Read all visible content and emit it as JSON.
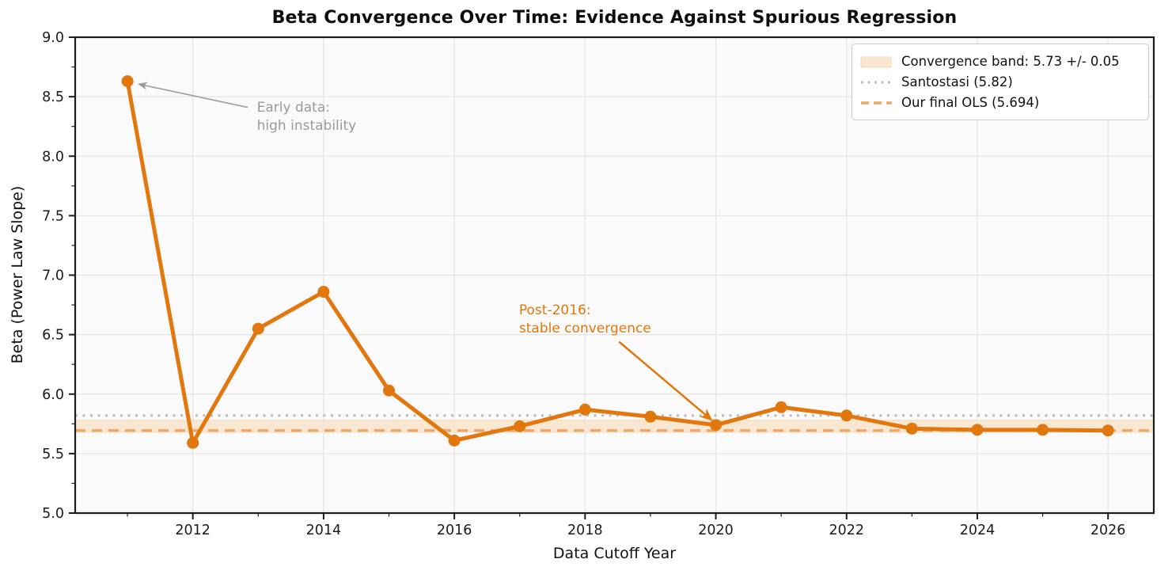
{
  "title": "Beta Convergence Over Time: Evidence Against Spurious Regression",
  "axes": {
    "xlabel": "Data Cutoff Year",
    "ylabel": "Beta (Power Law Slope)"
  },
  "colors": {
    "main_orange": "#e1770d",
    "light_orange_dashed": "#f2a463",
    "band_fill": "#f9e7d2",
    "band_edge": "#f3d9ba",
    "gray_dotted": "#bcbcbc",
    "annotation_gray": "#9a9a9a",
    "axes_background": "#fafafa",
    "grid": "#e4e4e4",
    "spine": "#1b1b1b"
  },
  "chart_data": {
    "type": "line",
    "title": "Beta Convergence Over Time: Evidence Against Spurious Regression",
    "xlabel": "Data Cutoff Year",
    "ylabel": "Beta (Power Law Slope)",
    "xlim": [
      2010.2,
      2026.7
    ],
    "ylim": [
      5.0,
      9.0
    ],
    "grid": true,
    "legend_position": "upper right",
    "x": [
      2011,
      2012,
      2013,
      2014,
      2015,
      2016,
      2017,
      2018,
      2019,
      2020,
      2021,
      2022,
      2023,
      2024,
      2025,
      2026
    ],
    "series": [
      {
        "name": "beta-by-cutoff-year",
        "color": "#e1770d",
        "values": [
          8.63,
          5.59,
          6.55,
          6.86,
          6.03,
          5.61,
          5.73,
          5.87,
          5.81,
          5.74,
          5.89,
          5.82,
          5.71,
          5.7,
          5.7,
          5.694
        ]
      }
    ],
    "band": {
      "name": "convergence-band",
      "label": "Convergence band: 5.73 +/- 0.05",
      "center": 5.73,
      "half_width": 0.05,
      "low": 5.68,
      "high": 5.78,
      "fill": "#f9e7d2",
      "edge": "#f3d9ba"
    },
    "reference_lines": [
      {
        "name": "santostasi-line",
        "label": "Santostasi (5.82)",
        "value": 5.82,
        "style": "dotted",
        "color": "#bcbcbc"
      },
      {
        "name": "final-ols-line",
        "label": "Our final OLS (5.694)",
        "value": 5.694,
        "style": "dashed",
        "color": "#f2a463"
      }
    ],
    "x_ticks": {
      "major": [
        2012,
        2014,
        2016,
        2018,
        2020,
        2022,
        2024,
        2026
      ],
      "minor": [
        2011,
        2013,
        2015,
        2017,
        2019,
        2021,
        2023,
        2025
      ]
    },
    "y_ticks": {
      "major": [
        5.0,
        5.5,
        6.0,
        6.5,
        7.0,
        7.5,
        8.0,
        8.5,
        9.0
      ],
      "minor": [
        5.25,
        5.75,
        6.25,
        6.75,
        7.25,
        7.75,
        8.25,
        8.75
      ]
    },
    "annotations": [
      {
        "name": "annotation-early-data",
        "lines": [
          "Early data:",
          "high instability"
        ],
        "color": "#9a9a9a",
        "text_pos": [
          2012.98,
          8.48
        ],
        "arrow_start": [
          2012.84,
          8.41
        ],
        "arrow_end": [
          2011.18,
          8.605
        ],
        "arrow_width": 1.6
      },
      {
        "name": "annotation-post-2016",
        "lines": [
          "Post-2016:",
          "stable convergence"
        ],
        "color": "#e1770d",
        "text_pos": [
          2016.99,
          6.78
        ],
        "arrow_start": [
          2018.52,
          6.44
        ],
        "arrow_end": [
          2019.93,
          5.785
        ],
        "arrow_width": 2.5
      }
    ]
  },
  "legend": {
    "items": [
      {
        "name": "legend-item-convergence-band",
        "type": "band",
        "label": "Convergence band: 5.73 +/- 0.05",
        "color": "#f9e7d2",
        "edge": "#f3d9ba"
      },
      {
        "name": "legend-item-santostasi",
        "type": "dotted",
        "label": "Santostasi (5.82)",
        "color": "#bcbcbc"
      },
      {
        "name": "legend-item-final-ols",
        "type": "dashed",
        "label": "Our final OLS (5.694)",
        "color": "#f2a463"
      }
    ]
  }
}
